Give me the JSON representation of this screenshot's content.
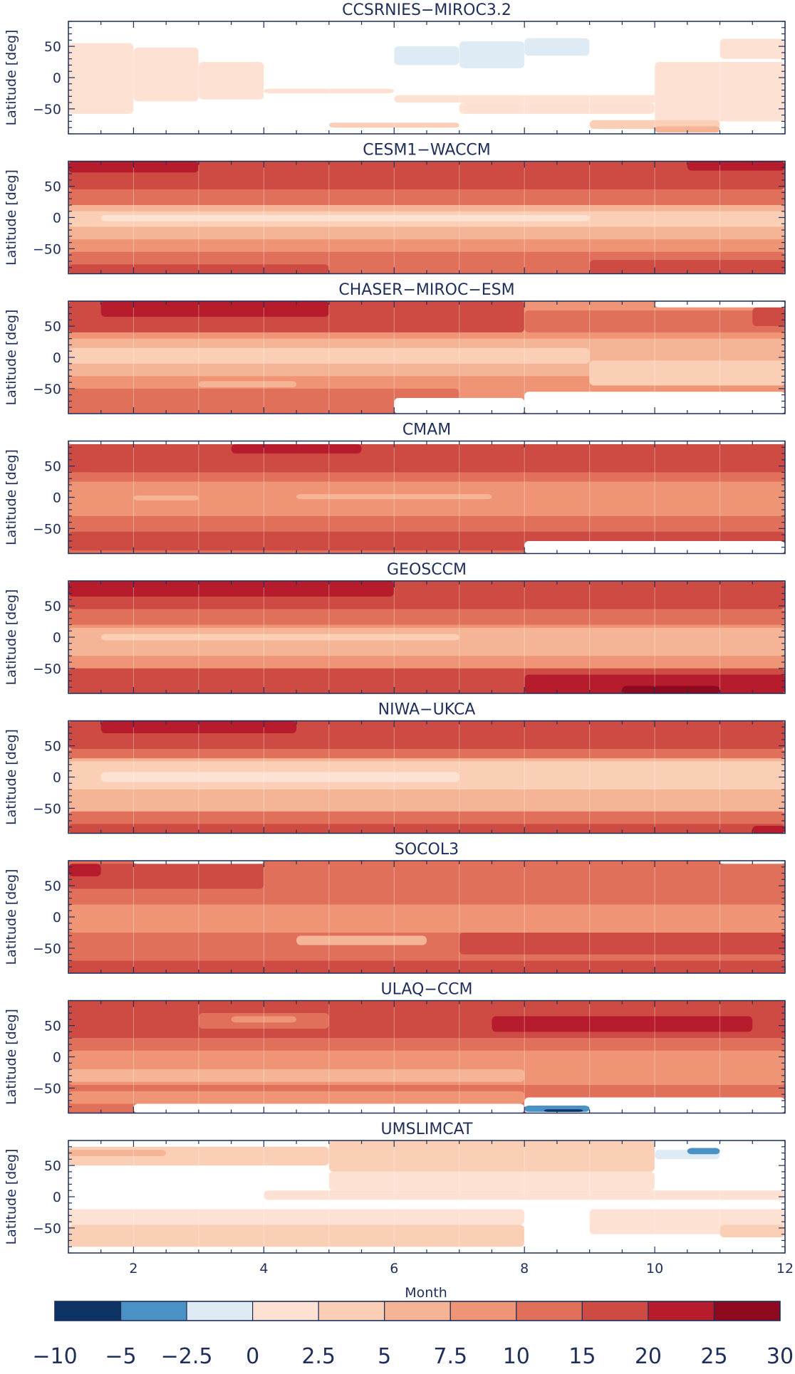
{
  "chart_data": {
    "type": "heatmap",
    "xlabel": "Month",
    "ylabel": "Latitude [deg]",
    "xlim": [
      1,
      12
    ],
    "ylim": [
      -90,
      90
    ],
    "x_ticks": [
      2,
      4,
      6,
      8,
      10,
      12
    ],
    "y_ticks": [
      50,
      0,
      -50
    ],
    "colorbar": {
      "levels": [
        -10,
        -5,
        -2.5,
        0,
        2.5,
        5,
        7.5,
        10,
        15,
        20,
        25,
        30
      ],
      "tick_labels": [
        "−10",
        "−5",
        "−2.5",
        "0",
        "2.5",
        "5",
        "7.5",
        "10",
        "15",
        "20",
        "25",
        "30"
      ],
      "colors": [
        "#0d3264",
        "#4a92c6",
        "#deebf4",
        "#fde1d3",
        "#fbcfb6",
        "#f6b496",
        "#ef9474",
        "#e0705a",
        "#cd4b42",
        "#b71c2c",
        "#8d0a1f"
      ]
    },
    "panels": [
      {
        "title": "CCSRNIES−MIROC3.2",
        "base_level": -1,
        "blocks": [
          {
            "level": 3,
            "x0": 1.0,
            "x1": 2.0,
            "y0": -58,
            "y1": 55
          },
          {
            "level": 3,
            "x0": 2.0,
            "x1": 3.0,
            "y0": -38,
            "y1": 48
          },
          {
            "level": 3,
            "x0": 3.0,
            "x1": 4.0,
            "y0": -35,
            "y1": 25
          },
          {
            "level": 3,
            "x0": 4.0,
            "x1": 6.0,
            "y0": -25,
            "y1": -18
          },
          {
            "level": 2,
            "x0": 6.0,
            "x1": 7.0,
            "y0": 20,
            "y1": 50
          },
          {
            "level": 2,
            "x0": 7.0,
            "x1": 8.0,
            "y0": 15,
            "y1": 58
          },
          {
            "level": 2,
            "x0": 8.0,
            "x1": 9.0,
            "y0": 35,
            "y1": 63
          },
          {
            "level": 3,
            "x0": 6.0,
            "x1": 12.0,
            "y0": -40,
            "y1": -28
          },
          {
            "level": 3,
            "x0": 7.0,
            "x1": 10.0,
            "y0": -58,
            "y1": -40
          },
          {
            "level": 3,
            "x0": 10.0,
            "x1": 12.0,
            "y0": -70,
            "y1": 25
          },
          {
            "level": 3,
            "x0": 11.0,
            "x1": 12.0,
            "y0": 30,
            "y1": 62
          },
          {
            "level": 4,
            "x0": 5.0,
            "x1": 7.0,
            "y0": -80,
            "y1": -72
          },
          {
            "level": 4,
            "x0": 9.0,
            "x1": 11.0,
            "y0": -82,
            "y1": -68
          },
          {
            "level": 5,
            "x0": 10.0,
            "x1": 11.0,
            "y0": -88,
            "y1": -78
          }
        ]
      },
      {
        "title": "CESM1−WACCM",
        "base_level": 6,
        "blocks": [
          {
            "level": 8,
            "x0": 1.0,
            "x1": 12.0,
            "y0": 45,
            "y1": 90
          },
          {
            "level": 9,
            "x0": 1.0,
            "x1": 3.0,
            "y0": 72,
            "y1": 90
          },
          {
            "level": 9,
            "x0": 10.5,
            "x1": 12.0,
            "y0": 75,
            "y1": 90
          },
          {
            "level": 7,
            "x0": 1.0,
            "x1": 12.0,
            "y0": 20,
            "y1": 45
          },
          {
            "level": 5,
            "x0": 1.0,
            "x1": 12.0,
            "y0": -35,
            "y1": 20
          },
          {
            "level": 4,
            "x0": 1.0,
            "x1": 12.0,
            "y0": -15,
            "y1": 10
          },
          {
            "level": 3,
            "x0": 1.5,
            "x1": 9.0,
            "y0": -6,
            "y1": 4
          },
          {
            "level": 7,
            "x0": 1.0,
            "x1": 12.0,
            "y0": -90,
            "y1": -55
          },
          {
            "level": 8,
            "x0": 1.0,
            "x1": 5.0,
            "y0": -90,
            "y1": -75
          },
          {
            "level": 8,
            "x0": 9.0,
            "x1": 12.0,
            "y0": -90,
            "y1": -68
          }
        ]
      },
      {
        "title": "CHASER−MIROC−ESM",
        "base_level": 6,
        "blocks": [
          {
            "level": 8,
            "x0": 1.0,
            "x1": 8.0,
            "y0": 40,
            "y1": 90
          },
          {
            "level": 9,
            "x0": 1.5,
            "x1": 5.0,
            "y0": 65,
            "y1": 90
          },
          {
            "level": 7,
            "x0": 8.0,
            "x1": 12.0,
            "y0": 40,
            "y1": 75
          },
          {
            "level": 8,
            "x0": 11.5,
            "x1": 12.0,
            "y0": 50,
            "y1": 80
          },
          {
            "level": -1,
            "x0": 10.0,
            "x1": 12.0,
            "y0": 80,
            "y1": 90
          },
          {
            "level": 5,
            "x0": 1.0,
            "x1": 12.0,
            "y0": -30,
            "y1": 30
          },
          {
            "level": 4,
            "x0": 1.0,
            "x1": 9.0,
            "y0": -10,
            "y1": 15
          },
          {
            "level": 4,
            "x0": 9.0,
            "x1": 12.0,
            "y0": -45,
            "y1": -5
          },
          {
            "level": 7,
            "x0": 1.0,
            "x1": 7.0,
            "y0": -90,
            "y1": -50
          },
          {
            "level": 5,
            "x0": 3.0,
            "x1": 4.5,
            "y0": -48,
            "y1": -38
          },
          {
            "level": -1,
            "x0": 6.0,
            "x1": 8.0,
            "y0": -90,
            "y1": -65
          },
          {
            "level": -1,
            "x0": 8.0,
            "x1": 12.0,
            "y0": -90,
            "y1": -55
          }
        ]
      },
      {
        "title": "CMAM",
        "base_level": 7,
        "blocks": [
          {
            "level": 8,
            "x0": 1.0,
            "x1": 12.0,
            "y0": 40,
            "y1": 85
          },
          {
            "level": 9,
            "x0": 3.5,
            "x1": 5.5,
            "y0": 70,
            "y1": 85
          },
          {
            "level": 6,
            "x0": 1.0,
            "x1": 12.0,
            "y0": -30,
            "y1": 25
          },
          {
            "level": 5,
            "x0": 2.0,
            "x1": 3.0,
            "y0": -5,
            "y1": 3
          },
          {
            "level": 5,
            "x0": 4.5,
            "x1": 7.5,
            "y0": -3,
            "y1": 5
          },
          {
            "level": 8,
            "x0": 1.0,
            "x1": 12.0,
            "y0": -85,
            "y1": -55
          },
          {
            "level": -1,
            "x0": 1.0,
            "x1": 12.0,
            "y0": 85,
            "y1": 90
          },
          {
            "level": -1,
            "x0": 8.0,
            "x1": 12.0,
            "y0": -90,
            "y1": -70
          }
        ]
      },
      {
        "title": "GEOSCCM",
        "base_level": 6,
        "blocks": [
          {
            "level": 8,
            "x0": 1.0,
            "x1": 12.0,
            "y0": 45,
            "y1": 90
          },
          {
            "level": 9,
            "x0": 1.0,
            "x1": 6.0,
            "y0": 65,
            "y1": 90
          },
          {
            "level": 7,
            "x0": 1.0,
            "x1": 12.0,
            "y0": 20,
            "y1": 45
          },
          {
            "level": 5,
            "x0": 1.0,
            "x1": 12.0,
            "y0": -30,
            "y1": 15
          },
          {
            "level": 4,
            "x0": 1.5,
            "x1": 7.0,
            "y0": -5,
            "y1": 5
          },
          {
            "level": 8,
            "x0": 1.0,
            "x1": 12.0,
            "y0": -90,
            "y1": -50
          },
          {
            "level": 9,
            "x0": 8.0,
            "x1": 12.0,
            "y0": -90,
            "y1": -60
          },
          {
            "level": 10,
            "x0": 9.5,
            "x1": 11.0,
            "y0": -90,
            "y1": -78
          }
        ]
      },
      {
        "title": "NIWA−UKCA",
        "base_level": 5,
        "blocks": [
          {
            "level": 8,
            "x0": 1.0,
            "x1": 12.0,
            "y0": 45,
            "y1": 90
          },
          {
            "level": 9,
            "x0": 1.5,
            "x1": 4.5,
            "y0": 70,
            "y1": 90
          },
          {
            "level": 7,
            "x0": 1.0,
            "x1": 12.0,
            "y0": 30,
            "y1": 45
          },
          {
            "level": 4,
            "x0": 1.0,
            "x1": 12.0,
            "y0": -20,
            "y1": 25
          },
          {
            "level": 3,
            "x0": 1.5,
            "x1": 7.0,
            "y0": -8,
            "y1": 8
          },
          {
            "level": 7,
            "x0": 1.0,
            "x1": 12.0,
            "y0": -90,
            "y1": -55
          },
          {
            "level": 8,
            "x0": 1.0,
            "x1": 12.0,
            "y0": -90,
            "y1": -75
          },
          {
            "level": 9,
            "x0": 11.5,
            "x1": 12.0,
            "y0": -90,
            "y1": -78
          }
        ]
      },
      {
        "title": "SOCOL3",
        "base_level": 7,
        "blocks": [
          {
            "level": 8,
            "x0": 1.0,
            "x1": 4.0,
            "y0": 45,
            "y1": 85
          },
          {
            "level": 9,
            "x0": 1.0,
            "x1": 1.5,
            "y0": 65,
            "y1": 85
          },
          {
            "level": 6,
            "x0": 1.0,
            "x1": 12.0,
            "y0": -25,
            "y1": 20
          },
          {
            "level": 5,
            "x0": 4.5,
            "x1": 6.5,
            "y0": -45,
            "y1": -30
          },
          {
            "level": 8,
            "x0": 7.0,
            "x1": 12.0,
            "y0": -60,
            "y1": -25
          },
          {
            "level": 8,
            "x0": 1.0,
            "x1": 12.0,
            "y0": -90,
            "y1": -70
          },
          {
            "level": -1,
            "x0": 2.0,
            "x1": 4.0,
            "y0": 85,
            "y1": 90
          },
          {
            "level": -1,
            "x0": 11.0,
            "x1": 12.0,
            "y0": 85,
            "y1": 90
          }
        ]
      },
      {
        "title": "ULAQ−CCM",
        "base_level": 7,
        "blocks": [
          {
            "level": 8,
            "x0": 1.0,
            "x1": 12.0,
            "y0": 30,
            "y1": 90
          },
          {
            "level": 7,
            "x0": 3.0,
            "x1": 5.0,
            "y0": 45,
            "y1": 70
          },
          {
            "level": 6,
            "x0": 3.5,
            "x1": 4.5,
            "y0": 55,
            "y1": 65
          },
          {
            "level": 9,
            "x0": 7.5,
            "x1": 11.5,
            "y0": 40,
            "y1": 65
          },
          {
            "level": 6,
            "x0": 1.0,
            "x1": 12.0,
            "y0": -45,
            "y1": 10
          },
          {
            "level": 5,
            "x0": 1.0,
            "x1": 8.0,
            "y0": -40,
            "y1": -20
          },
          {
            "level": 6,
            "x0": 1.0,
            "x1": 8.0,
            "y0": -75,
            "y1": -55
          },
          {
            "level": -1,
            "x0": 2.0,
            "x1": 8.0,
            "y0": -90,
            "y1": -75
          },
          {
            "level": -1,
            "x0": 8.0,
            "x1": 12.0,
            "y0": -90,
            "y1": -65
          },
          {
            "level": 1,
            "x0": 8.0,
            "x1": 9.0,
            "y0": -88,
            "y1": -78
          },
          {
            "level": 0,
            "x0": 8.3,
            "x1": 8.9,
            "y0": -88,
            "y1": -84
          }
        ]
      },
      {
        "title": "UMSLIMCAT",
        "base_level": -1,
        "blocks": [
          {
            "level": 4,
            "x0": 1.0,
            "x1": 5.0,
            "y0": 50,
            "y1": 80
          },
          {
            "level": 5,
            "x0": 1.0,
            "x1": 2.5,
            "y0": 65,
            "y1": 75
          },
          {
            "level": 4,
            "x0": 5.0,
            "x1": 10.0,
            "y0": 40,
            "y1": 90
          },
          {
            "level": 3,
            "x0": 5.0,
            "x1": 10.0,
            "y0": 10,
            "y1": 40
          },
          {
            "level": 3,
            "x0": 4.0,
            "x1": 12.0,
            "y0": -5,
            "y1": 10
          },
          {
            "level": 2,
            "x0": 10.0,
            "x1": 11.0,
            "y0": 60,
            "y1": 75
          },
          {
            "level": 1,
            "x0": 10.5,
            "x1": 11.0,
            "y0": 68,
            "y1": 78
          },
          {
            "level": 3,
            "x0": 1.0,
            "x1": 8.0,
            "y0": -45,
            "y1": -20
          },
          {
            "level": 4,
            "x0": 1.0,
            "x1": 8.0,
            "y0": -80,
            "y1": -45
          },
          {
            "level": 3,
            "x0": 9.0,
            "x1": 12.0,
            "y0": -60,
            "y1": -20
          },
          {
            "level": 4,
            "x0": 11.0,
            "x1": 12.0,
            "y0": -65,
            "y1": -45
          },
          {
            "level": -1,
            "x0": 8.0,
            "x1": 9.0,
            "y0": -90,
            "y1": -35
          }
        ]
      }
    ]
  }
}
